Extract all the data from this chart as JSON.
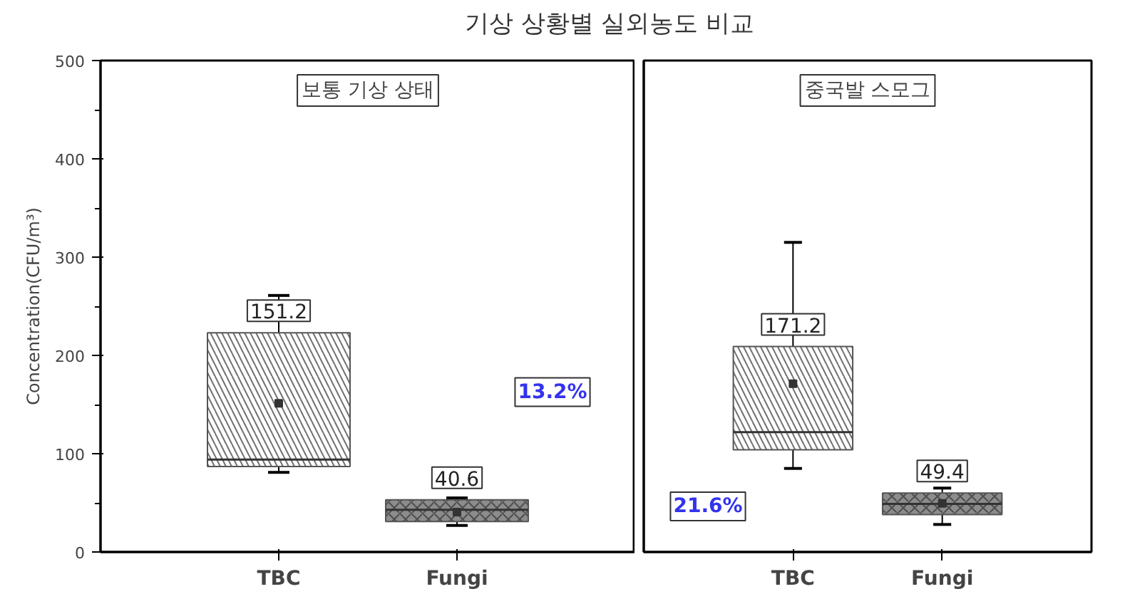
{
  "chart_data": [
    {
      "type": "box",
      "title": "기상 상황별 실외농도 비교",
      "ylabel": "Concentration(CFU/m³)",
      "categories": [
        "TBC",
        "Fungi"
      ],
      "colors": [
        "#ffffff",
        "#8c8c8c"
      ],
      "boxes": [
        {
          "low": 81,
          "q1": 87,
          "median": 94,
          "q3": 223,
          "high": 261,
          "mean": 151.2
        },
        {
          "low": 27,
          "q1": 31,
          "median": 43,
          "q3": 53,
          "high": 55,
          "mean": 40.6
        }
      ],
      "ylim": [
        0,
        500
      ],
      "yticks": [
        0,
        100,
        200,
        300,
        400,
        500
      ],
      "annotations": [
        "보통 기상 상태",
        "151.2",
        "40.6",
        "13.2%"
      ]
    },
    {
      "type": "box",
      "categories": [
        "TBC",
        "Fungi"
      ],
      "colors": [
        "#ffffff",
        "#8c8c8c"
      ],
      "boxes": [
        {
          "low": 85,
          "q1": 104,
          "median": 122,
          "q3": 209,
          "high": 315,
          "mean": 171.2
        },
        {
          "low": 28,
          "q1": 38,
          "median": 49,
          "q3": 60,
          "high": 65,
          "mean": 49.4
        }
      ],
      "ylim": [
        0,
        500
      ],
      "yticks": [
        0,
        100,
        200,
        300,
        400,
        500
      ],
      "tick_labels": "x",
      "annotations": [
        "중국발 스모그",
        "171.2",
        "49.4",
        "21.6%"
      ]
    }
  ]
}
